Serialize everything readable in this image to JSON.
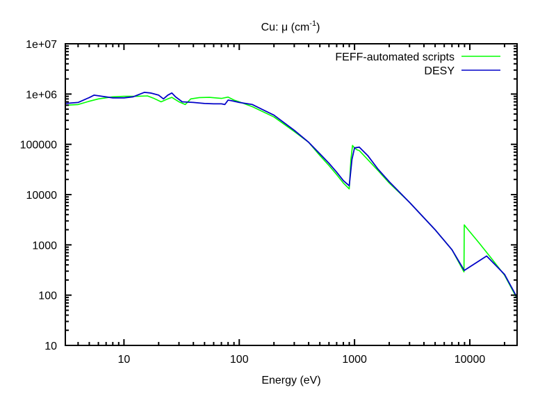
{
  "chart_data": {
    "type": "line",
    "title": "Cu: μ (cm",
    "title_superscript": "-1",
    "title_suffix": ")",
    "xlabel": "Energy (eV)",
    "ylabel": "",
    "xscale": "log",
    "yscale": "log",
    "xlim": [
      3.1,
      25700
    ],
    "ylim": [
      10,
      10000000
    ],
    "x_ticks": [
      {
        "value": 10,
        "label": "10"
      },
      {
        "value": 100,
        "label": "100"
      },
      {
        "value": 1000,
        "label": "1000"
      },
      {
        "value": 10000,
        "label": "10000"
      }
    ],
    "y_ticks": [
      {
        "value": 10,
        "label": "10"
      },
      {
        "value": 100,
        "label": "100"
      },
      {
        "value": 1000,
        "label": "1000"
      },
      {
        "value": 10000,
        "label": "10000"
      },
      {
        "value": 100000,
        "label": "100000"
      },
      {
        "value": 1000000,
        "label": "1e+06"
      },
      {
        "value": 10000000,
        "label": "1e+07"
      }
    ],
    "grid": false,
    "legend_position": "top-right",
    "series": [
      {
        "name": "FEFF-automated scripts",
        "color": "#00ff00",
        "points": [
          [
            3.1,
            600000
          ],
          [
            4,
            620000
          ],
          [
            5,
            720000
          ],
          [
            6,
            800000
          ],
          [
            8,
            880000
          ],
          [
            10,
            900000
          ],
          [
            13,
            900000
          ],
          [
            16,
            920000
          ],
          [
            18,
            830000
          ],
          [
            21,
            700000
          ],
          [
            24,
            800000
          ],
          [
            26,
            860000
          ],
          [
            30,
            700000
          ],
          [
            34,
            620000
          ],
          [
            38,
            800000
          ],
          [
            45,
            850000
          ],
          [
            55,
            860000
          ],
          [
            70,
            820000
          ],
          [
            80,
            870000
          ],
          [
            90,
            760000
          ],
          [
            100,
            700000
          ],
          [
            130,
            560000
          ],
          [
            200,
            350000
          ],
          [
            300,
            180000
          ],
          [
            400,
            110000
          ],
          [
            500,
            60000
          ],
          [
            600,
            38000
          ],
          [
            700,
            25000
          ],
          [
            800,
            17000
          ],
          [
            900,
            13000
          ],
          [
            930,
            50000
          ],
          [
            960,
            95000
          ],
          [
            1000,
            85000
          ],
          [
            1050,
            78000
          ],
          [
            1100,
            75000
          ],
          [
            1300,
            50000
          ],
          [
            1600,
            30000
          ],
          [
            2000,
            17000
          ],
          [
            3000,
            7000
          ],
          [
            5000,
            2000
          ],
          [
            7000,
            800
          ],
          [
            8900,
            290
          ],
          [
            8950,
            2500
          ],
          [
            9200,
            2300
          ],
          [
            12000,
            1100
          ],
          [
            15000,
            580
          ],
          [
            20000,
            250
          ],
          [
            25700,
            85
          ]
        ]
      },
      {
        "name": "DESY",
        "color": "#0000c8",
        "points": [
          [
            3.1,
            650000
          ],
          [
            4,
            680000
          ],
          [
            5,
            850000
          ],
          [
            5.5,
            950000
          ],
          [
            6.5,
            900000
          ],
          [
            8,
            840000
          ],
          [
            10,
            840000
          ],
          [
            12,
            880000
          ],
          [
            15,
            1080000
          ],
          [
            17,
            1050000
          ],
          [
            20,
            950000
          ],
          [
            22,
            800000
          ],
          [
            24,
            950000
          ],
          [
            26,
            1050000
          ],
          [
            28,
            880000
          ],
          [
            32,
            700000
          ],
          [
            40,
            680000
          ],
          [
            50,
            650000
          ],
          [
            60,
            640000
          ],
          [
            70,
            640000
          ],
          [
            75,
            620000
          ],
          [
            80,
            760000
          ],
          [
            85,
            740000
          ],
          [
            100,
            680000
          ],
          [
            130,
            620000
          ],
          [
            200,
            380000
          ],
          [
            300,
            190000
          ],
          [
            400,
            110000
          ],
          [
            500,
            65000
          ],
          [
            600,
            42000
          ],
          [
            700,
            28000
          ],
          [
            800,
            19000
          ],
          [
            900,
            15000
          ],
          [
            950,
            50000
          ],
          [
            1000,
            85000
          ],
          [
            1100,
            88000
          ],
          [
            1300,
            60000
          ],
          [
            1600,
            32000
          ],
          [
            2000,
            18000
          ],
          [
            3000,
            7000
          ],
          [
            5000,
            2000
          ],
          [
            7000,
            800
          ],
          [
            8950,
            310
          ],
          [
            14000,
            600
          ],
          [
            20000,
            260
          ],
          [
            25700,
            90
          ]
        ]
      }
    ]
  }
}
